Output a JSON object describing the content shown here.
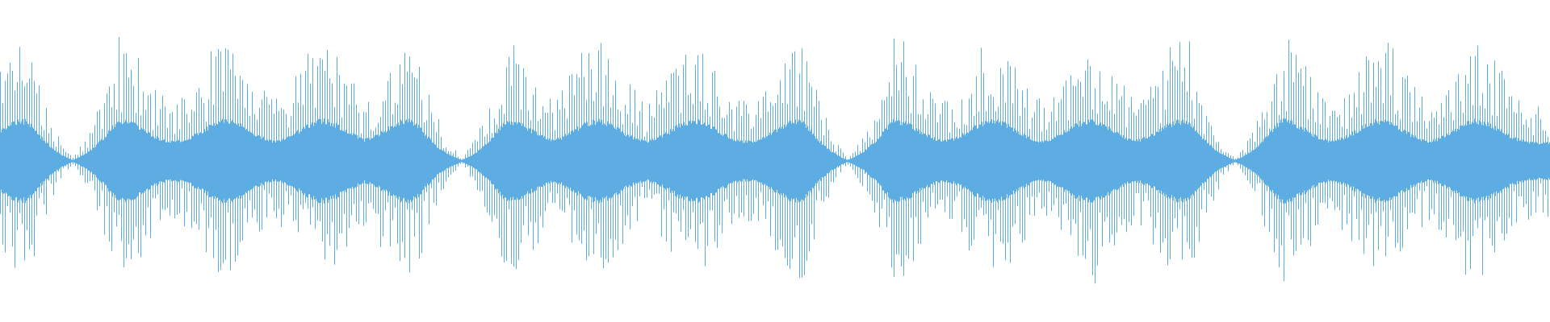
{
  "waveform": {
    "color": "#5DADE2",
    "background": "#FFFFFF"
  }
}
